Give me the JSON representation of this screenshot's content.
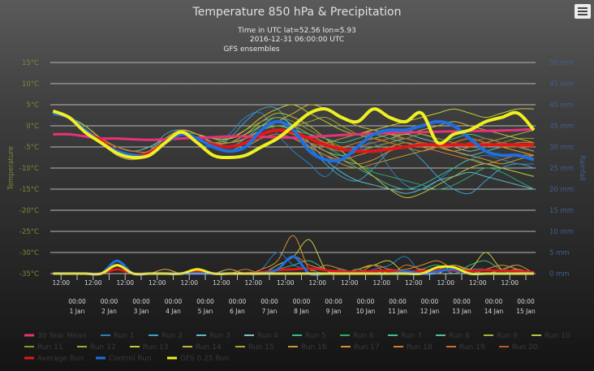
{
  "chart_data": {
    "type": "line",
    "title": "Temperature 850 hPa & Precipitation",
    "subtitle_lines": [
      "Time in UTC lat=52.56 lon=5.93",
      "2016-12-31 06:00:00 UTC"
    ],
    "source_label": "GFS ensembles",
    "y_left": {
      "label": "Temperature",
      "min": -35,
      "max": 15,
      "ticks": [
        "15°C",
        "10°C",
        "5°C",
        "0°C",
        "-5°C",
        "-10°C",
        "-15°C",
        "-20°C",
        "-25°C",
        "-30°C",
        "-35°C"
      ],
      "color": "#8a9a40"
    },
    "y_right": {
      "label": "Rainfall",
      "min": 0,
      "max": 50,
      "ticks": [
        "50 mm",
        "45 mm",
        "40 mm",
        "35 mm",
        "30 mm",
        "25 mm",
        "20 mm",
        "15 mm",
        "10 mm",
        "5 mm",
        "0 mm"
      ],
      "color": "#3f5f8f"
    },
    "x_axis": {
      "start": "2016-12-31 06:00",
      "step_hours": 12,
      "minor_labels": [
        "12:00",
        "12:00",
        "12:00",
        "12:00",
        "12:00",
        "12:00",
        "12:00",
        "12:00",
        "12:00",
        "12:00",
        "12:00",
        "12:00",
        "12:00",
        "12:00",
        "12:00"
      ],
      "major_labels": [
        {
          "time": "00:00",
          "date": "1 Jan"
        },
        {
          "time": "00:00",
          "date": "2 Jan"
        },
        {
          "time": "00:00",
          "date": "3 Jan"
        },
        {
          "time": "00:00",
          "date": "4 Jan"
        },
        {
          "time": "00:00",
          "date": "5 Jan"
        },
        {
          "time": "00:00",
          "date": "6 Jan"
        },
        {
          "time": "00:00",
          "date": "7 Jan"
        },
        {
          "time": "00:00",
          "date": "8 Jan"
        },
        {
          "time": "00:00",
          "date": "9 Jan"
        },
        {
          "time": "00:00",
          "date": "10 Jan"
        },
        {
          "time": "00:00",
          "date": "11 Jan"
        },
        {
          "time": "00:00",
          "date": "12 Jan"
        },
        {
          "time": "00:00",
          "date": "13 Jan"
        },
        {
          "time": "00:00",
          "date": "14 Jan"
        },
        {
          "time": "00:00",
          "date": "15 Jan"
        }
      ]
    },
    "grid": true,
    "legend_position": "bottom",
    "series": [
      {
        "name": "30 Year Mean",
        "color": "#e8317a",
        "width": 3,
        "temp": [
          -2,
          -2,
          -2.5,
          -3,
          -3,
          -3.2,
          -3.3,
          -3.2,
          -3,
          -2.8,
          -2.7,
          -2.5,
          -2.5,
          -2.6,
          -2.7,
          -2.8,
          -2.6,
          -2.4,
          -2.2,
          -2,
          -1.8,
          -1.7,
          -1.6,
          -1.5,
          -1.4,
          -1.3,
          -1.2,
          -1.2,
          -1.1,
          -1,
          -0.8
        ]
      },
      {
        "name": "Run 1",
        "color": "#2b7fbf",
        "width": 1,
        "temp": [
          3,
          2,
          -1,
          -4,
          -6,
          -7,
          -6,
          -3,
          -2,
          -4,
          -5,
          -2,
          2,
          3,
          -2,
          -6,
          -9,
          -12,
          -8,
          -6,
          -4,
          -10,
          -14,
          -15,
          -13,
          -10,
          -8,
          -7,
          -8,
          -9,
          -9
        ]
      },
      {
        "name": "Run 2",
        "color": "#3aa0c8",
        "width": 1,
        "temp": [
          3,
          2,
          -1,
          -4,
          -7,
          -8,
          -6,
          -2,
          -1,
          -3,
          -5,
          -3,
          1,
          4,
          4,
          -1,
          -5,
          -9,
          -12,
          -13,
          -10,
          -6,
          -5,
          -8,
          -12,
          -15,
          -16,
          -13,
          -10,
          -9,
          -10
        ]
      },
      {
        "name": "Run 3",
        "color": "#59b9c8",
        "width": 1,
        "temp": [
          3,
          2,
          -1,
          -3,
          -6,
          -7,
          -6,
          -3,
          -1,
          -2,
          -4,
          -5,
          -3,
          0,
          2,
          0,
          -4,
          -8,
          -11,
          -13,
          -14,
          -15,
          -16,
          -15,
          -13,
          -12,
          -11,
          -12,
          -13,
          -14,
          -15
        ]
      },
      {
        "name": "Run 4",
        "color": "#7fbfbf",
        "width": 1,
        "temp": [
          3,
          2,
          0,
          -3,
          -5,
          -6,
          -5,
          -3,
          -2,
          -3,
          -4,
          -4,
          -3,
          -1,
          0,
          -1,
          -3,
          -5,
          -6,
          -5,
          -4,
          -3,
          -2,
          -3,
          -4,
          -5,
          -6,
          -5,
          -4,
          -5,
          -6
        ]
      },
      {
        "name": "Run 5",
        "color": "#3ab88a",
        "width": 1,
        "temp": [
          3,
          2,
          -1,
          -3,
          -6,
          -7,
          -7,
          -4,
          -2,
          -3,
          -5,
          -6,
          -4,
          -2,
          -1,
          -2,
          -4,
          -6,
          -8,
          -10,
          -12,
          -14,
          -15,
          -14,
          -12,
          -10,
          -8,
          -9,
          -10,
          -11,
          -12
        ]
      },
      {
        "name": "Run 6",
        "color": "#2fa86a",
        "width": 1,
        "temp": [
          3,
          2,
          -1,
          -4,
          -6,
          -7,
          -6,
          -4,
          -2,
          -2,
          -4,
          -5,
          -4,
          -2,
          -1,
          -2,
          -3,
          -5,
          -7,
          -9,
          -11,
          -12,
          -13,
          -14,
          -15,
          -14,
          -12,
          -10,
          -11,
          -13,
          -15
        ]
      },
      {
        "name": "Run 7",
        "color": "#3fbf8f",
        "width": 1,
        "temp": [
          3,
          2,
          -1,
          -3,
          -5,
          -6,
          -6,
          -3,
          -1,
          -2,
          -3,
          -4,
          -3,
          -1,
          0,
          -1,
          -2,
          -3,
          -4,
          -3,
          -2,
          -3,
          -4,
          -5,
          -4,
          -3,
          -2,
          -3,
          -4,
          -5,
          -5
        ]
      },
      {
        "name": "Run 8",
        "color": "#4fbf9f",
        "width": 1,
        "temp": [
          3,
          2,
          -1,
          -4,
          -6,
          -7,
          -7,
          -4,
          -2,
          -3,
          -4,
          -5,
          -4,
          -2,
          -1,
          -2,
          -4,
          -6,
          -7,
          -6,
          -5,
          -4,
          -3,
          -4,
          -5,
          -6,
          -7,
          -6,
          -5,
          -4,
          -4
        ]
      },
      {
        "name": "Run 9",
        "color": "#9ab83a",
        "width": 1,
        "temp": [
          3,
          2,
          0,
          -3,
          -5,
          -6,
          -6,
          -3,
          -1,
          -2,
          -3,
          -3,
          -2,
          0,
          1,
          0,
          -2,
          -4,
          -5,
          -4,
          -3,
          -2,
          -1,
          -2,
          -3,
          -4,
          -5,
          -4,
          -3,
          -2,
          -1
        ]
      },
      {
        "name": "Run 10",
        "color": "#b5c23a",
        "width": 1,
        "temp": [
          3,
          2,
          -1,
          -3,
          -6,
          -7,
          -6,
          -3,
          -1,
          -2,
          -4,
          -4,
          -2,
          1,
          3,
          2,
          0,
          -3,
          -6,
          -9,
          -12,
          -15,
          -17,
          -16,
          -14,
          -12,
          -10,
          -9,
          -10,
          -11,
          -12
        ]
      },
      {
        "name": "Run 11",
        "color": "#8a9a2a",
        "width": 1,
        "temp": [
          3,
          2,
          -1,
          -4,
          -6,
          -7,
          -6,
          -3,
          -2,
          -3,
          -4,
          -3,
          -1,
          1,
          2,
          1,
          -1,
          -3,
          -5,
          -6,
          -5,
          -4,
          -3,
          -2,
          -3,
          -4,
          -5,
          -5,
          -4,
          -3,
          -3
        ]
      },
      {
        "name": "Run 12",
        "color": "#a0ae2a",
        "width": 1,
        "temp": [
          3,
          2,
          -1,
          -4,
          -6,
          -7,
          -7,
          -4,
          -2,
          -3,
          -4,
          -4,
          -3,
          -1,
          0,
          0,
          1,
          2,
          0,
          -2,
          -3,
          -4,
          -5,
          -6,
          -5,
          -4,
          -3,
          -4,
          -5,
          -6,
          -7
        ]
      },
      {
        "name": "Run 13",
        "color": "#c8c83a",
        "width": 1,
        "temp": [
          3,
          2,
          0,
          -3,
          -5,
          -6,
          -6,
          -3,
          -1,
          -2,
          -3,
          -3,
          -1,
          2,
          4,
          5,
          3,
          1,
          -1,
          -2,
          -1,
          0,
          1,
          2,
          3,
          4,
          3,
          2,
          3,
          4,
          4
        ]
      },
      {
        "name": "Run 14",
        "color": "#c8b43a",
        "width": 1,
        "temp": [
          3,
          2,
          -1,
          -3,
          -6,
          -7,
          -6,
          -3,
          -1,
          -2,
          -4,
          -4,
          -3,
          -1,
          1,
          3,
          5,
          4,
          2,
          0,
          -1,
          -2,
          -2,
          -1,
          0,
          1,
          0,
          -1,
          -2,
          -3,
          -4
        ]
      },
      {
        "name": "Run 15",
        "color": "#b8a03a",
        "width": 1,
        "temp": [
          3,
          2,
          -1,
          -4,
          -6,
          -7,
          -7,
          -4,
          -2,
          -3,
          -4,
          -5,
          -4,
          -2,
          -1,
          -2,
          -3,
          -4,
          -3,
          -2,
          -1,
          -2,
          -3,
          -4,
          -5,
          -4,
          -3,
          -4,
          -5,
          -5,
          -6
        ]
      },
      {
        "name": "Run 16",
        "color": "#c89a30",
        "width": 1,
        "temp": [
          3,
          2,
          -1,
          -4,
          -7,
          -8,
          -7,
          -4,
          -2,
          -3,
          -5,
          -6,
          -5,
          -3,
          -2,
          -3,
          -5,
          -7,
          -9,
          -10,
          -9,
          -8,
          -7,
          -6,
          -5,
          -6,
          -7,
          -8,
          -9,
          -8,
          -7
        ]
      },
      {
        "name": "Run 17",
        "color": "#d89030",
        "width": 1,
        "temp": [
          3,
          2,
          -1,
          -3,
          -6,
          -7,
          -6,
          -3,
          -1,
          -2,
          -4,
          -5,
          -4,
          -2,
          -1,
          -2,
          -4,
          -6,
          -8,
          -9,
          -8,
          -6,
          -5,
          -4,
          -5,
          -6,
          -5,
          -4,
          -5,
          -6,
          -7
        ]
      },
      {
        "name": "Run 18",
        "color": "#d08030",
        "width": 1,
        "temp": [
          3,
          2,
          -1,
          -4,
          -6,
          -7,
          -6,
          -4,
          -2,
          -3,
          -5,
          -5,
          -4,
          -3,
          -2,
          -3,
          -5,
          -7,
          -8,
          -7,
          -6,
          -5,
          -4,
          -5,
          -6,
          -7,
          -8,
          -9,
          -8,
          -7,
          -7
        ]
      },
      {
        "name": "Run 19",
        "color": "#c87030",
        "width": 1,
        "temp": [
          3,
          2,
          -1,
          -3,
          -5,
          -6,
          -6,
          -3,
          -2,
          -3,
          -4,
          -4,
          -3,
          -2,
          -1,
          -2,
          -3,
          -4,
          -5,
          -4,
          -3,
          -4,
          -5,
          -6,
          -5,
          -4,
          -3,
          -4,
          -5,
          -4,
          -4
        ]
      },
      {
        "name": "Run 20",
        "color": "#c05a2a",
        "width": 1,
        "temp": [
          3,
          2,
          -1,
          -4,
          -6,
          -7,
          -7,
          -4,
          -2,
          -3,
          -4,
          -5,
          -4,
          -3,
          -2,
          -3,
          -4,
          -5,
          -6,
          -5,
          -4,
          -3,
          -3,
          -4,
          -5,
          -5,
          -4,
          -3,
          -4,
          -5,
          -5
        ]
      },
      {
        "name": "Average Run",
        "color": "#e01818",
        "width": 4,
        "temp": [
          3,
          2,
          -1,
          -3.5,
          -6,
          -7,
          -6.5,
          -4,
          -2,
          -3,
          -4.5,
          -5,
          -4,
          -2,
          -1,
          -1.5,
          -3,
          -4.5,
          -5.5,
          -6,
          -6,
          -5.5,
          -5,
          -4.5,
          -4.5,
          -4.5,
          -4.5,
          -4.5,
          -4.5,
          -4.5,
          -4.5
        ]
      },
      {
        "name": "Control Run",
        "color": "#1f6fe0",
        "width": 4,
        "temp": [
          3,
          2,
          -1,
          -4,
          -6,
          -7,
          -7,
          -4,
          -2,
          -3,
          -5,
          -6,
          -5,
          -1,
          1,
          -1,
          -6,
          -8,
          -8,
          -5,
          -2,
          -1,
          -1,
          0,
          1,
          0,
          -3,
          -6,
          -7,
          -7,
          -8
        ]
      },
      {
        "name": "GFS 0.25 Run",
        "color": "#f0f020",
        "width": 4,
        "temp": [
          3.5,
          2,
          -1.5,
          -4,
          -6.5,
          -7.5,
          -7,
          -4,
          -1.5,
          -4,
          -7,
          -7.5,
          -7,
          -5,
          -3,
          0,
          3,
          4,
          2,
          1,
          4,
          2,
          1,
          3,
          -4,
          -2,
          -1,
          1,
          2,
          3,
          -1
        ]
      }
    ],
    "rain_series": [
      {
        "name": "Run 1",
        "color": "#2b7fbf",
        "rain": [
          0,
          0,
          0,
          0,
          3,
          0,
          0,
          0,
          0,
          0,
          0,
          0,
          0,
          1,
          5,
          2,
          1,
          0,
          1,
          0,
          1,
          2,
          4,
          0,
          0,
          0,
          1,
          1,
          0,
          1,
          0
        ]
      },
      {
        "name": "Run 5",
        "color": "#3ab88a",
        "rain": [
          0,
          0,
          0,
          0,
          2,
          0,
          0,
          1,
          0,
          1,
          0,
          1,
          0,
          0,
          1,
          2,
          3,
          1,
          0,
          1,
          0,
          1,
          0,
          1,
          2,
          0,
          2,
          3,
          1,
          2,
          0
        ]
      },
      {
        "name": "Run 13",
        "color": "#c8c83a",
        "rain": [
          0,
          0,
          0,
          0,
          3,
          0,
          0,
          0,
          0,
          1,
          0,
          0,
          0,
          0,
          2,
          4,
          8,
          1,
          0,
          1,
          2,
          3,
          0,
          1,
          0,
          2,
          1,
          5,
          1,
          1,
          0
        ]
      },
      {
        "name": "Run 17",
        "color": "#d89030",
        "rain": [
          0,
          0,
          0,
          0,
          2,
          0,
          0,
          1,
          0,
          0,
          0,
          1,
          0,
          1,
          3,
          9,
          1,
          2,
          1,
          0,
          2,
          1,
          1,
          2,
          3,
          1,
          0,
          1,
          2,
          1,
          0
        ]
      },
      {
        "name": "Run 18",
        "color": "#d08030",
        "rain": [
          0,
          0,
          0,
          0,
          1,
          0,
          0,
          0,
          0,
          1,
          0,
          0,
          1,
          0,
          1,
          4,
          2,
          1,
          0,
          1,
          2,
          0,
          2,
          1,
          1,
          2,
          1,
          0,
          1,
          2,
          0
        ]
      },
      {
        "name": "Average Run",
        "color": "#e01818",
        "rain": [
          0,
          0,
          0,
          0,
          1,
          0,
          0,
          0,
          0,
          0.5,
          0,
          0,
          0,
          0.3,
          0.8,
          1,
          1.2,
          0.8,
          0.5,
          0.4,
          0.6,
          0.7,
          0.5,
          0.6,
          0.8,
          0.7,
          0.6,
          0.8,
          0.7,
          0.6,
          0.3
        ]
      },
      {
        "name": "Control Run",
        "color": "#1f6fe0",
        "rain": [
          0,
          0,
          0,
          0,
          3,
          0,
          0,
          0,
          0,
          0,
          0,
          0,
          0,
          0,
          1,
          4,
          0,
          0,
          0,
          0,
          0,
          0,
          0.5,
          0,
          0.5,
          1,
          0,
          0,
          0,
          0,
          0
        ]
      },
      {
        "name": "GFS 0.25 Run",
        "color": "#f0f020",
        "rain": [
          0,
          0,
          0,
          0,
          2,
          0,
          0,
          0,
          0,
          1,
          0,
          0,
          0,
          0,
          0,
          0,
          0,
          0,
          0,
          0,
          0,
          0,
          0,
          0,
          1.5,
          1.5,
          0,
          0,
          0,
          0,
          0
        ]
      }
    ]
  },
  "menu": {
    "icon": "hamburger-menu-icon"
  }
}
